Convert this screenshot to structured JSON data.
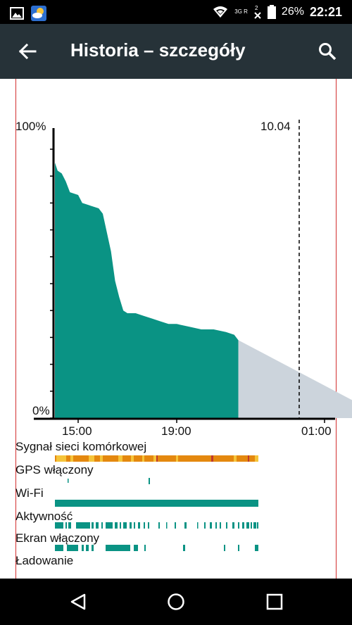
{
  "status_bar": {
    "network": "3G R",
    "battery": "26%",
    "time": "22:21",
    "icons": [
      "gallery-icon",
      "weather-icon",
      "wifi-icon",
      "signal-icon",
      "battery-icon"
    ]
  },
  "app_bar": {
    "title": "Historia – szczegóły",
    "icons": [
      "back-arrow-icon",
      "search-icon"
    ]
  },
  "chart_data": {
    "type": "area",
    "title": "",
    "ylim_labels": {
      "top": "100%",
      "bottom": "0%"
    },
    "marker_label": "10.04",
    "x_tick_labels": [
      "15:00",
      "19:00",
      "01:00"
    ],
    "series": [
      {
        "x": [
          "13:50",
          "14:10",
          "14:20",
          "14:30",
          "14:40",
          "15:00",
          "15:10",
          "15:30",
          "15:50",
          "16:00",
          "16:10",
          "16:20",
          "16:30",
          "16:40",
          "16:50",
          "17:00",
          "17:20",
          "17:40",
          "18:00",
          "18:20",
          "18:40",
          "19:00",
          "19:30",
          "20:00",
          "20:30",
          "21:00",
          "21:20",
          "21:30"
        ],
        "y": [
          95,
          92,
          91,
          88,
          84,
          83,
          80,
          79,
          78,
          76,
          69,
          62,
          51,
          45,
          40,
          39,
          39,
          38,
          37,
          36,
          35,
          35,
          34,
          33,
          33,
          32,
          31,
          29
        ],
        "color": "#0a9384"
      }
    ],
    "prediction": {
      "from": "21:30",
      "to": "03:30",
      "y_from": 29,
      "y_to": 0,
      "color": "#ccd4dc"
    }
  },
  "tracks": [
    {
      "label": "Sygnał sieci komórkowej"
    },
    {
      "label": "GPS włączony"
    },
    {
      "label": "Wi-Fi"
    },
    {
      "label": "Aktywność"
    },
    {
      "label": "Ekran włączony"
    },
    {
      "label": "Ładowanie"
    }
  ],
  "nav_bar": {
    "icons": [
      "back-triangle-icon",
      "home-circle-icon",
      "recents-square-icon"
    ]
  },
  "colors": {
    "teal": "#0a9384",
    "orange": "#e4880f",
    "yellow": "#f5c43a",
    "appbar": "#263238",
    "frame": "#d32f2f"
  }
}
